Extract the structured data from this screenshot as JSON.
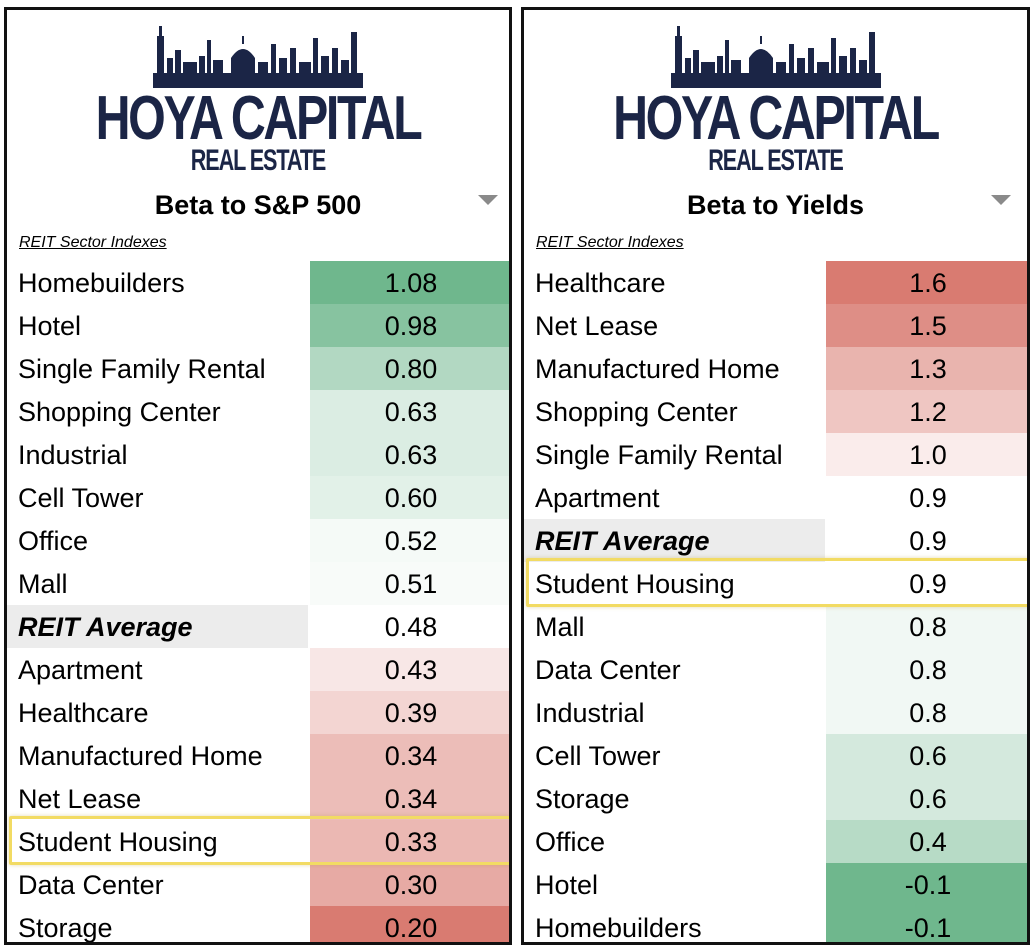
{
  "logo": {
    "name": "HOYA CAPITAL",
    "subtitle": "REAL ESTATE"
  },
  "colors": {
    "brand": "#1b2546",
    "highlight": "#f2db63",
    "positive": "#67b387",
    "negative": "#d7746a"
  },
  "chart_data": [
    {
      "type": "table",
      "title": "Beta to S&P 500",
      "subtitle": "REIT Sector Indexes",
      "highlighted": "Student Housing",
      "categories": [
        "Homebuilders",
        "Hotel",
        "Single Family Rental",
        "Shopping Center",
        "Industrial",
        "Cell Tower",
        "Office",
        "Mall",
        "REIT Average",
        "Apartment",
        "Healthcare",
        "Manufactured Home",
        "Net Lease",
        "Student Housing",
        "Data Center",
        "Storage"
      ],
      "values": [
        "1.08",
        "0.98",
        "0.80",
        "0.63",
        "0.63",
        "0.60",
        "0.52",
        "0.51",
        "0.48",
        "0.43",
        "0.39",
        "0.34",
        "0.34",
        "0.33",
        "0.30",
        "0.20"
      ],
      "color_scale": "green-high-red-low"
    },
    {
      "type": "table",
      "title": "Beta to Yields",
      "subtitle": "REIT Sector Indexes",
      "highlighted": "Student Housing",
      "categories": [
        "Healthcare",
        "Net Lease",
        "Manufactured Home",
        "Shopping Center",
        "Single Family Rental",
        "Apartment",
        "REIT Average",
        "Student Housing",
        "Mall",
        "Data Center",
        "Industrial",
        "Cell Tower",
        "Storage",
        "Office",
        "Hotel",
        "Homebuilders"
      ],
      "values": [
        "1.6",
        "1.5",
        "1.3",
        "1.2",
        "1.0",
        "0.9",
        "0.9",
        "0.9",
        "0.8",
        "0.8",
        "0.8",
        "0.6",
        "0.6",
        "0.4",
        "-0.1",
        "-0.1"
      ],
      "color_scale": "red-high-green-low"
    }
  ]
}
